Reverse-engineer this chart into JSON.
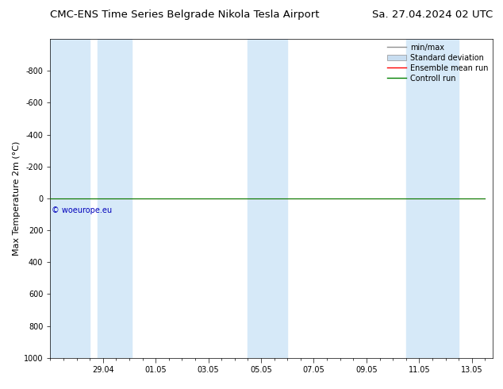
{
  "title_left": "CMC-ENS Time Series Belgrade Nikola Tesla Airport",
  "title_right": "Sa. 27.04.2024 02 UTC",
  "ylabel": "Max Temperature 2m (°C)",
  "ylim_top": -1000,
  "ylim_bottom": 1000,
  "yticks": [
    -800,
    -600,
    -400,
    -200,
    0,
    200,
    400,
    600,
    800,
    1000
  ],
  "xlim_start": 0.0,
  "xlim_end": 16.8,
  "xtick_labels": [
    "29.04",
    "01.05",
    "03.05",
    "05.05",
    "07.05",
    "09.05",
    "11.05",
    "13.05"
  ],
  "xtick_positions": [
    2,
    4,
    6,
    8,
    10,
    12,
    14,
    16
  ],
  "blue_band_ranges": [
    [
      0.0,
      1.5
    ],
    [
      1.8,
      3.1
    ],
    [
      7.5,
      9.0
    ],
    [
      13.5,
      15.5
    ]
  ],
  "blue_band_color": "#d6e9f8",
  "ensemble_mean_color": "#ff0000",
  "control_run_color": "#008000",
  "min_max_color": "#909090",
  "std_dev_fill_color": "#c8ddf0",
  "copyright_text": "© woeurope.eu",
  "copyright_color": "#0000bb",
  "background_color": "#ffffff",
  "plot_bg_color": "#ffffff",
  "title_fontsize": 9.5,
  "tick_fontsize": 7,
  "ylabel_fontsize": 8,
  "legend_fontsize": 7
}
